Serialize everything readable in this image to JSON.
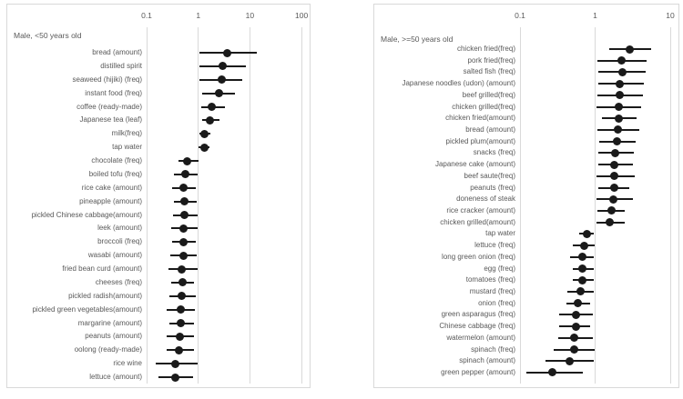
{
  "figure": {
    "background": "#ffffff",
    "point_color": "#1a1a1a",
    "grid_color": "#d9d9d9",
    "text_color": "#595959"
  },
  "chart_data": [
    {
      "type": "scatter",
      "variant": "forest-plot-dot-with-ci",
      "title": "Male, <50 years old",
      "x_scale": "log",
      "x_ticks": [
        0.1,
        1,
        10,
        100
      ],
      "x_tick_labels": [
        "0.1",
        "1",
        "10",
        "100"
      ],
      "grid": true,
      "legend": false,
      "items": [
        {
          "label": "bread (amount)",
          "or": 3.7,
          "lo": 1.05,
          "hi": 13.5
        },
        {
          "label": "distilled spirit",
          "or": 3.0,
          "lo": 1.05,
          "hi": 8.5
        },
        {
          "label": "seaweed (hijiki) (freq)",
          "or": 2.8,
          "lo": 1.05,
          "hi": 7.2
        },
        {
          "label": "instant food (freq)",
          "or": 2.5,
          "lo": 1.2,
          "hi": 5.2
        },
        {
          "label": "coffee (ready-made)",
          "or": 1.8,
          "lo": 1.13,
          "hi": 3.3
        },
        {
          "label": "Japanese tea (leaf)",
          "or": 1.65,
          "lo": 1.18,
          "hi": 2.6
        },
        {
          "label": "milk(freq)",
          "or": 1.3,
          "lo": 1.05,
          "hi": 1.7
        },
        {
          "label": "tap water",
          "or": 1.3,
          "lo": 1.03,
          "hi": 1.65
        },
        {
          "label": "chocolate (freq)",
          "or": 0.62,
          "lo": 0.42,
          "hi": 1.0
        },
        {
          "label": "boiled tofu (freq)",
          "or": 0.56,
          "lo": 0.34,
          "hi": 0.97
        },
        {
          "label": "rice cake (amount)",
          "or": 0.52,
          "lo": 0.31,
          "hi": 0.9
        },
        {
          "label": "pineapple (amount)",
          "or": 0.54,
          "lo": 0.34,
          "hi": 0.93
        },
        {
          "label": "pickled Chinese cabbage(amount)",
          "or": 0.54,
          "lo": 0.33,
          "hi": 0.97
        },
        {
          "label": "leek (amount)",
          "or": 0.51,
          "lo": 0.3,
          "hi": 0.97
        },
        {
          "label": "broccoli (freq)",
          "or": 0.51,
          "lo": 0.31,
          "hi": 0.9
        },
        {
          "label": "wasabi (amount)",
          "or": 0.51,
          "lo": 0.29,
          "hi": 0.92
        },
        {
          "label": "fried bean curd (amount)",
          "or": 0.48,
          "lo": 0.26,
          "hi": 0.96
        },
        {
          "label": "cheeses (freq)",
          "or": 0.5,
          "lo": 0.3,
          "hi": 0.82
        },
        {
          "label": "pickled radish(amount)",
          "or": 0.48,
          "lo": 0.28,
          "hi": 0.9
        },
        {
          "label": "pickled green vegetables(amount)",
          "or": 0.46,
          "lo": 0.24,
          "hi": 0.87
        },
        {
          "label": "margarine (amount)",
          "or": 0.46,
          "lo": 0.28,
          "hi": 0.82
        },
        {
          "label": "peanuts (amount)",
          "or": 0.44,
          "lo": 0.24,
          "hi": 0.84
        },
        {
          "label": "oolong (ready-made)",
          "or": 0.42,
          "lo": 0.24,
          "hi": 0.82
        },
        {
          "label": "rice wine",
          "or": 0.36,
          "lo": 0.15,
          "hi": 0.96
        },
        {
          "label": "lettuce (amount)",
          "or": 0.36,
          "lo": 0.17,
          "hi": 0.78
        }
      ]
    },
    {
      "type": "scatter",
      "variant": "forest-plot-dot-with-ci",
      "title": "Male, >=50 years old",
      "x_scale": "log",
      "x_ticks": [
        0.1,
        1,
        10
      ],
      "x_tick_labels": [
        "0.1",
        "1",
        "10"
      ],
      "grid": true,
      "legend": false,
      "items": [
        {
          "label": "chicken fried(freq)",
          "or": 2.9,
          "lo": 1.55,
          "hi": 5.6
        },
        {
          "label": "pork fried(freq)",
          "or": 2.25,
          "lo": 1.06,
          "hi": 4.85
        },
        {
          "label": "salted fish (freq)",
          "or": 2.3,
          "lo": 1.1,
          "hi": 4.75
        },
        {
          "label": "Japanese noodles (udon) (amount)",
          "or": 2.15,
          "lo": 1.1,
          "hi": 4.4
        },
        {
          "label": "beef grilled(freq)",
          "or": 2.15,
          "lo": 1.06,
          "hi": 4.3
        },
        {
          "label": "chicken grilled(freq)",
          "or": 2.06,
          "lo": 1.04,
          "hi": 4.1
        },
        {
          "label": "chicken fried(amount)",
          "or": 2.06,
          "lo": 1.22,
          "hi": 3.6
        },
        {
          "label": "bread (amount)",
          "or": 2.0,
          "lo": 1.07,
          "hi": 3.85
        },
        {
          "label": "pickled plum(amount)",
          "or": 1.95,
          "lo": 1.14,
          "hi": 3.44
        },
        {
          "label": "snacks (freq)",
          "or": 1.87,
          "lo": 1.11,
          "hi": 3.25
        },
        {
          "label": "Japanese cake (amount)",
          "or": 1.82,
          "lo": 1.11,
          "hi": 3.2
        },
        {
          "label": "beef saute(freq)",
          "or": 1.79,
          "lo": 1.04,
          "hi": 3.35
        },
        {
          "label": "peanuts (freq)",
          "or": 1.79,
          "lo": 1.09,
          "hi": 2.85
        },
        {
          "label": "doneness of steak",
          "or": 1.74,
          "lo": 1.04,
          "hi": 3.2
        },
        {
          "label": "rice cracker (amount)",
          "or": 1.66,
          "lo": 1.07,
          "hi": 2.5
        },
        {
          "label": "chicken grilled(amount)",
          "or": 1.58,
          "lo": 1.04,
          "hi": 2.48
        },
        {
          "label": "tap water",
          "or": 0.77,
          "lo": 0.62,
          "hi": 0.95
        },
        {
          "label": "lettuce (freq)",
          "or": 0.71,
          "lo": 0.51,
          "hi": 1.0
        },
        {
          "label": "long green onion (freq)",
          "or": 0.68,
          "lo": 0.47,
          "hi": 0.97
        },
        {
          "label": "egg (freq)",
          "or": 0.68,
          "lo": 0.5,
          "hi": 0.95
        },
        {
          "label": "tomatoes (freq)",
          "or": 0.68,
          "lo": 0.51,
          "hi": 0.95
        },
        {
          "label": "mustard (freq)",
          "or": 0.64,
          "lo": 0.43,
          "hi": 0.95
        },
        {
          "label": "onion (freq)",
          "or": 0.59,
          "lo": 0.42,
          "hi": 0.85
        },
        {
          "label": "green asparagus (freq)",
          "or": 0.55,
          "lo": 0.33,
          "hi": 0.92
        },
        {
          "label": "Chinese cabbage (freq)",
          "or": 0.55,
          "lo": 0.33,
          "hi": 0.86
        },
        {
          "label": "watermelon (amount)",
          "or": 0.53,
          "lo": 0.32,
          "hi": 0.92
        },
        {
          "label": "spinach (freq)",
          "or": 0.53,
          "lo": 0.28,
          "hi": 1.0
        },
        {
          "label": "spinach (amount)",
          "or": 0.46,
          "lo": 0.22,
          "hi": 0.95
        },
        {
          "label": "green pepper (amount)",
          "or": 0.27,
          "lo": 0.12,
          "hi": 0.68
        }
      ]
    }
  ]
}
